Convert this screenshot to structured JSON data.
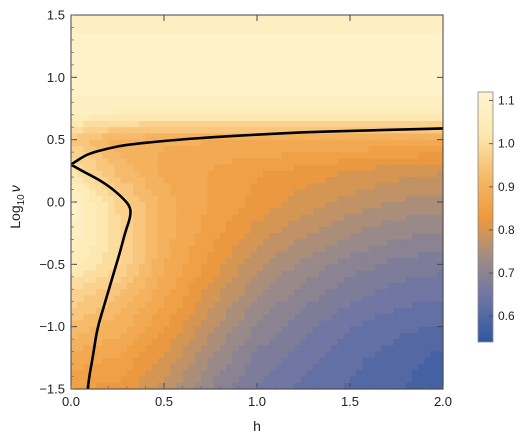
{
  "chart_data": {
    "type": "heatmap",
    "subtype": "contour-density",
    "title": "",
    "xlabel": "h",
    "ylabel": {
      "prefix": "Log",
      "subscript": "10",
      "symbol": "ν"
    },
    "xlim": [
      0.0,
      2.0
    ],
    "ylim": [
      -1.5,
      1.5
    ],
    "x_ticks": [
      0.0,
      0.5,
      1.0,
      1.5,
      2.0
    ],
    "x_tick_labels": [
      "0.0",
      "0.5",
      "1.0",
      "1.5",
      "2.0"
    ],
    "y_ticks": [
      -1.5,
      -1.0,
      -0.5,
      0.0,
      0.5,
      1.0,
      1.5
    ],
    "y_tick_labels": [
      "−1.5",
      "−1.0",
      "−0.5",
      "0.0",
      "0.5",
      "1.0",
      "1.5"
    ],
    "colorbar": {
      "min": 0.54,
      "max": 1.12,
      "ticks": [
        0.6,
        0.7,
        0.8,
        0.9,
        1.0,
        1.1
      ],
      "tick_labels": [
        "0.6",
        "0.7",
        "0.8",
        "0.9",
        "1.0",
        "1.1"
      ],
      "colormap": [
        "#2f57a0",
        "#6a73a6",
        "#9d8c86",
        "#ee9a3c",
        "#f6bb6b",
        "#fde8b0",
        "#fff5d2"
      ]
    },
    "contour_level": 1.0,
    "contour_curves": [
      {
        "name": "upper",
        "points": [
          [
            0.0,
            0.3
          ],
          [
            0.05,
            0.35
          ],
          [
            0.1,
            0.39
          ],
          [
            0.2,
            0.43
          ],
          [
            0.3,
            0.46
          ],
          [
            0.5,
            0.49
          ],
          [
            0.75,
            0.52
          ],
          [
            1.0,
            0.54
          ],
          [
            1.25,
            0.56
          ],
          [
            1.5,
            0.57
          ],
          [
            1.75,
            0.58
          ],
          [
            2.0,
            0.59
          ]
        ]
      },
      {
        "name": "lower",
        "points": [
          [
            0.0,
            0.3
          ],
          [
            0.07,
            0.24
          ],
          [
            0.15,
            0.18
          ],
          [
            0.22,
            0.11
          ],
          [
            0.28,
            0.03
          ],
          [
            0.32,
            -0.04
          ],
          [
            0.32,
            -0.12
          ],
          [
            0.29,
            -0.25
          ],
          [
            0.26,
            -0.42
          ],
          [
            0.22,
            -0.62
          ],
          [
            0.18,
            -0.82
          ],
          [
            0.14,
            -1.02
          ],
          [
            0.12,
            -1.22
          ],
          [
            0.1,
            -1.38
          ],
          [
            0.09,
            -1.5
          ]
        ]
      }
    ],
    "field_samples": {
      "x": [
        0.0,
        0.25,
        0.5,
        0.75,
        1.0,
        1.25,
        1.5,
        1.75,
        2.0
      ],
      "y": [
        -1.5,
        -1.25,
        -1.0,
        -0.75,
        -0.5,
        -0.25,
        0.0,
        0.25,
        0.5,
        0.75,
        1.0,
        1.25,
        1.5
      ],
      "z": [
        [
          0.84,
          0.83,
          0.78,
          0.71,
          0.66,
          0.63,
          0.61,
          0.59,
          0.57
        ],
        [
          0.88,
          0.86,
          0.81,
          0.74,
          0.68,
          0.65,
          0.62,
          0.6,
          0.58
        ],
        [
          0.93,
          0.9,
          0.84,
          0.77,
          0.71,
          0.67,
          0.64,
          0.62,
          0.61
        ],
        [
          0.98,
          0.94,
          0.87,
          0.8,
          0.74,
          0.7,
          0.67,
          0.65,
          0.64
        ],
        [
          1.05,
          0.99,
          0.89,
          0.83,
          0.77,
          0.73,
          0.7,
          0.68,
          0.67
        ],
        [
          1.09,
          1.0,
          0.9,
          0.85,
          0.8,
          0.77,
          0.74,
          0.72,
          0.71
        ],
        [
          1.1,
          0.98,
          0.9,
          0.86,
          0.83,
          0.8,
          0.78,
          0.76,
          0.75
        ],
        [
          1.02,
          0.93,
          0.88,
          0.86,
          0.84,
          0.83,
          0.81,
          0.8,
          0.79
        ],
        [
          0.96,
          0.9,
          0.89,
          0.89,
          0.89,
          0.89,
          0.89,
          0.88,
          0.88
        ],
        [
          1.08,
          1.08,
          1.08,
          1.08,
          1.08,
          1.08,
          1.08,
          1.08,
          1.08
        ],
        [
          1.1,
          1.1,
          1.1,
          1.1,
          1.1,
          1.1,
          1.1,
          1.1,
          1.1
        ],
        [
          1.11,
          1.11,
          1.11,
          1.11,
          1.11,
          1.11,
          1.11,
          1.11,
          1.11
        ],
        [
          1.06,
          1.06,
          1.06,
          1.06,
          1.06,
          1.06,
          1.06,
          1.06,
          1.06
        ]
      ]
    },
    "grid": false,
    "legend": "colorbar-right"
  }
}
